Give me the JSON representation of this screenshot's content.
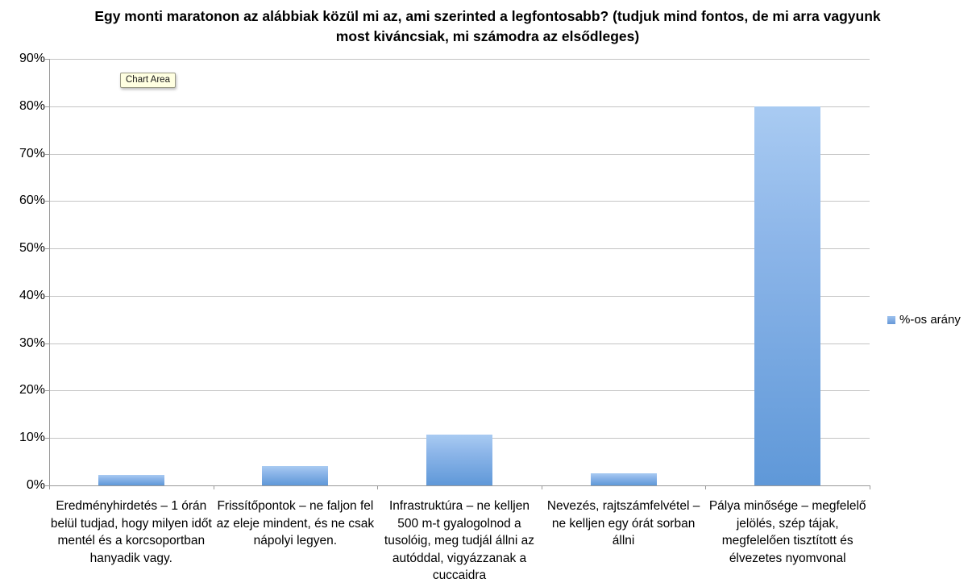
{
  "title": "Egy monti maratonon az alábbiak közül mi az, ami szerinted a legfontosabb? (tudjuk mind fontos, de mi arra vagyunk most kiváncsiak, mi számodra az elsődleges)",
  "tooltip": {
    "label": "Chart Area"
  },
  "legend": {
    "label": "%-os arány"
  },
  "colors": {
    "bar_gradient_top": "#a9cbf2",
    "bar_gradient_bottom": "#5f98d8",
    "gridline": "#c4c4c4",
    "axis": "#9a9a9a",
    "tooltip_bg": "#ffffe1"
  },
  "chart_data": {
    "type": "bar",
    "title": "Egy monti maratonon az alábbiak közül mi az, ami szerinted a legfontosabb? (tudjuk mind fontos, de mi arra vagyunk most kiváncsiak, mi számodra az elsődleges)",
    "categories": [
      "Eredményhirdetés – 1 órán belül tudjad, hogy milyen időt mentél és a korcsoportban hanyadik vagy.",
      "Frissítőpontok – ne faljon fel az eleje mindent, és ne csak nápolyi legyen.",
      "Infrastruktúra – ne kelljen 500 m-t gyalogolnod a tusolóig, meg tudjál állni az autóddal, vigyázzanak a cuccaidra",
      "Nevezés, rajtszámfelvétel – ne kelljen egy órát sorban állni",
      "Pálya minősége – megfelelő jelölés, szép tájak, megfelelően tisztított és élvezetes nyomvonal"
    ],
    "series": [
      {
        "name": "%-os arány",
        "values": [
          2.2,
          4.0,
          10.7,
          2.6,
          80.0
        ]
      }
    ],
    "xlabel": "",
    "ylabel": "",
    "ylim": [
      0,
      90
    ],
    "ytick_step": 10,
    "ytick_labels": [
      "0%",
      "10%",
      "20%",
      "30%",
      "40%",
      "50%",
      "60%",
      "70%",
      "80%",
      "90%"
    ],
    "grid": true,
    "legend_position": "right"
  }
}
